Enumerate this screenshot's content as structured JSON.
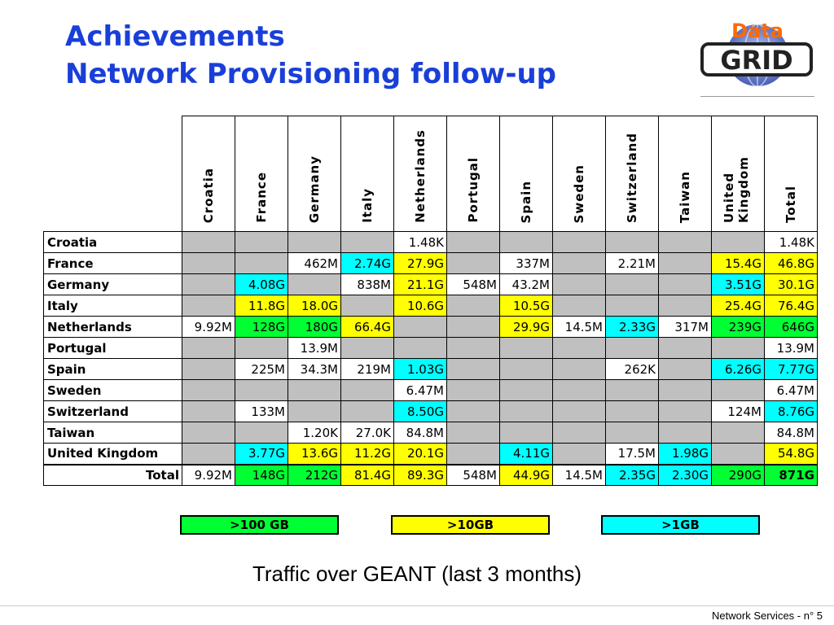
{
  "title": {
    "line1": "Achievements",
    "line2": "Network Provisioning follow-up"
  },
  "logo": {
    "word1": "Data",
    "word2": "GRID"
  },
  "columns": [
    "Croatia",
    "France",
    "Germany",
    "Italy",
    "Netherlands",
    "Portugal",
    "Spain",
    "Sweden",
    "Switzerland",
    "Taiwan",
    "United Kingdom",
    "Total"
  ],
  "rows": [
    {
      "label": "Croatia",
      "cells": [
        [
          "",
          "g"
        ],
        [
          "",
          "g"
        ],
        [
          "",
          "g"
        ],
        [
          "",
          "g"
        ],
        [
          "1.48K",
          "w"
        ],
        [
          "",
          "g"
        ],
        [
          "",
          "g"
        ],
        [
          "",
          "g"
        ],
        [
          "",
          "g"
        ],
        [
          "",
          "g"
        ],
        [
          "",
          "g"
        ],
        [
          "1.48K",
          "w"
        ]
      ]
    },
    {
      "label": "France",
      "cells": [
        [
          "",
          "g"
        ],
        [
          "",
          "g"
        ],
        [
          "462M",
          "w"
        ],
        [
          "2.74G",
          "c1"
        ],
        [
          "27.9G",
          "c10"
        ],
        [
          "",
          "g"
        ],
        [
          "337M",
          "w"
        ],
        [
          "",
          "g"
        ],
        [
          "2.21M",
          "w"
        ],
        [
          "",
          "g"
        ],
        [
          "15.4G",
          "c10"
        ],
        [
          "46.8G",
          "c10"
        ]
      ]
    },
    {
      "label": "Germany",
      "cells": [
        [
          "",
          "g"
        ],
        [
          "4.08G",
          "c1"
        ],
        [
          "",
          "g"
        ],
        [
          "838M",
          "w"
        ],
        [
          "21.1G",
          "c10"
        ],
        [
          "548M",
          "w"
        ],
        [
          "43.2M",
          "w"
        ],
        [
          "",
          "g"
        ],
        [
          "",
          "g"
        ],
        [
          "",
          "g"
        ],
        [
          "3.51G",
          "c1"
        ],
        [
          "30.1G",
          "c10"
        ]
      ]
    },
    {
      "label": "Italy",
      "cells": [
        [
          "",
          "g"
        ],
        [
          "11.8G",
          "c10"
        ],
        [
          "18.0G",
          "c10"
        ],
        [
          "",
          "g"
        ],
        [
          "10.6G",
          "c10"
        ],
        [
          "",
          "g"
        ],
        [
          "10.5G",
          "c10"
        ],
        [
          "",
          "g"
        ],
        [
          "",
          "g"
        ],
        [
          "",
          "g"
        ],
        [
          "25.4G",
          "c10"
        ],
        [
          "76.4G",
          "c10"
        ]
      ]
    },
    {
      "label": "Netherlands",
      "cells": [
        [
          "9.92M",
          "w"
        ],
        [
          "128G",
          "c100"
        ],
        [
          "180G",
          "c100"
        ],
        [
          "66.4G",
          "c10"
        ],
        [
          "",
          "g"
        ],
        [
          "",
          "g"
        ],
        [
          "29.9G",
          "c10"
        ],
        [
          "14.5M",
          "w"
        ],
        [
          "2.33G",
          "c1"
        ],
        [
          "317M",
          "w"
        ],
        [
          "239G",
          "c100"
        ],
        [
          "646G",
          "c100"
        ]
      ]
    },
    {
      "label": "Portugal",
      "cells": [
        [
          "",
          "g"
        ],
        [
          "",
          "g"
        ],
        [
          "13.9M",
          "w"
        ],
        [
          "",
          "g"
        ],
        [
          "",
          "g"
        ],
        [
          "",
          "g"
        ],
        [
          "",
          "g"
        ],
        [
          "",
          "g"
        ],
        [
          "",
          "g"
        ],
        [
          "",
          "g"
        ],
        [
          "",
          "g"
        ],
        [
          "13.9M",
          "w"
        ]
      ]
    },
    {
      "label": "Spain",
      "cells": [
        [
          "",
          "g"
        ],
        [
          "225M",
          "w"
        ],
        [
          "34.3M",
          "w"
        ],
        [
          "219M",
          "w"
        ],
        [
          "1.03G",
          "c1"
        ],
        [
          "",
          "g"
        ],
        [
          "",
          "g"
        ],
        [
          "",
          "g"
        ],
        [
          "262K",
          "w"
        ],
        [
          "",
          "g"
        ],
        [
          "6.26G",
          "c1"
        ],
        [
          "7.77G",
          "c1"
        ]
      ]
    },
    {
      "label": "Sweden",
      "cells": [
        [
          "",
          "g"
        ],
        [
          "",
          "g"
        ],
        [
          "",
          "g"
        ],
        [
          "",
          "g"
        ],
        [
          "6.47M",
          "w"
        ],
        [
          "",
          "g"
        ],
        [
          "",
          "g"
        ],
        [
          "",
          "g"
        ],
        [
          "",
          "g"
        ],
        [
          "",
          "g"
        ],
        [
          "",
          "g"
        ],
        [
          "6.47M",
          "w"
        ]
      ]
    },
    {
      "label": "Switzerland",
      "cells": [
        [
          "",
          "g"
        ],
        [
          "133M",
          "w"
        ],
        [
          "",
          "g"
        ],
        [
          "",
          "g"
        ],
        [
          "8.50G",
          "c1"
        ],
        [
          "",
          "g"
        ],
        [
          "",
          "g"
        ],
        [
          "",
          "g"
        ],
        [
          "",
          "g"
        ],
        [
          "",
          "g"
        ],
        [
          "124M",
          "w"
        ],
        [
          "8.76G",
          "c1"
        ]
      ]
    },
    {
      "label": "Taiwan",
      "cells": [
        [
          "",
          "g"
        ],
        [
          "",
          "g"
        ],
        [
          "1.20K",
          "w"
        ],
        [
          "27.0K",
          "w"
        ],
        [
          "84.8M",
          "w"
        ],
        [
          "",
          "g"
        ],
        [
          "",
          "g"
        ],
        [
          "",
          "g"
        ],
        [
          "",
          "g"
        ],
        [
          "",
          "g"
        ],
        [
          "",
          "g"
        ],
        [
          "84.8M",
          "w"
        ]
      ]
    },
    {
      "label": "United Kingdom",
      "cells": [
        [
          "",
          "g"
        ],
        [
          "3.77G",
          "c1"
        ],
        [
          "13.6G",
          "c10"
        ],
        [
          "11.2G",
          "c10"
        ],
        [
          "20.1G",
          "c10"
        ],
        [
          "",
          "g"
        ],
        [
          "4.11G",
          "c1"
        ],
        [
          "",
          "g"
        ],
        [
          "17.5M",
          "w"
        ],
        [
          "1.98G",
          "c1"
        ],
        [
          "",
          "g"
        ],
        [
          "54.8G",
          "c10"
        ]
      ]
    }
  ],
  "total_row": {
    "label": "Total",
    "cells": [
      [
        "9.92M",
        "w"
      ],
      [
        "148G",
        "c100"
      ],
      [
        "212G",
        "c100"
      ],
      [
        "81.4G",
        "c10"
      ],
      [
        "89.3G",
        "c10"
      ],
      [
        "548M",
        "w"
      ],
      [
        "44.9G",
        "c10"
      ],
      [
        "14.5M",
        "w"
      ],
      [
        "2.35G",
        "c1"
      ],
      [
        "2.30G",
        "c1"
      ],
      [
        "290G",
        "c100"
      ],
      [
        "871G",
        "c100b"
      ]
    ]
  },
  "legend": {
    "l100": ">100 GB",
    "l10": ">10GB",
    "l1": ">1GB"
  },
  "colors": {
    "title": "#1a3fd8",
    "gt100": "#00ff33",
    "gt10": "#ffff00",
    "gt1": "#00ffff",
    "empty": "#c0c0c0"
  },
  "caption": "Traffic over GEANT (last 3 months)",
  "footer": "Network Services - n° 5"
}
